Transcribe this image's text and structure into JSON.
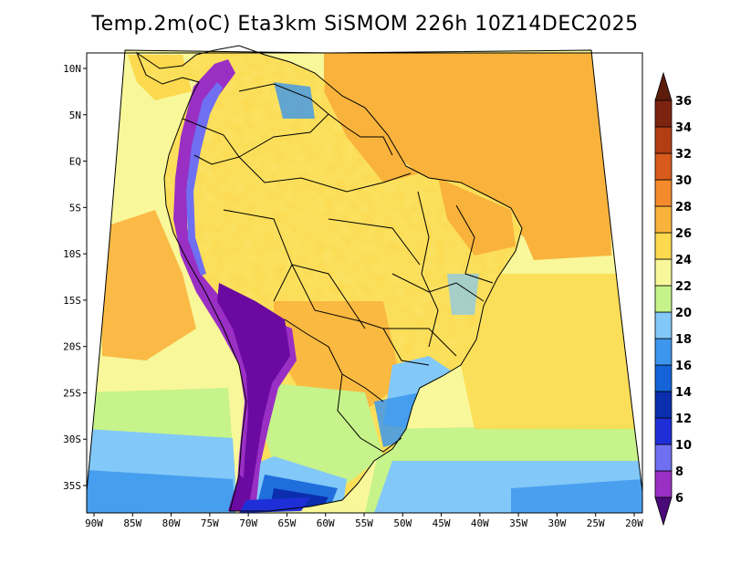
{
  "title": "Temp.2m(oC) Eta3km SiSMOM 226h 10Z14DEC2025",
  "map": {
    "variable": "2 m temperature",
    "units": "oC",
    "region": "South America",
    "lon_range": [
      -91,
      -19
    ],
    "lat_range": [
      -38,
      11
    ],
    "lon_ticks": [
      "90W",
      "85W",
      "80W",
      "75W",
      "70W",
      "65W",
      "60W",
      "55W",
      "50W",
      "45W",
      "40W",
      "35W",
      "30W",
      "25W",
      "20W"
    ],
    "lat_ticks": [
      "10N",
      "5N",
      "EQ",
      "5S",
      "10S",
      "15S",
      "20S",
      "25S",
      "30S",
      "35S"
    ]
  },
  "colorbar": {
    "labels": [
      "6",
      "8",
      "10",
      "12",
      "14",
      "16",
      "18",
      "20",
      "22",
      "24",
      "26",
      "28",
      "30",
      "32",
      "34",
      "36"
    ],
    "colors": [
      "#6a0aa0",
      "#9a2fc4",
      "#6f6ff2",
      "#1f2fd8",
      "#0a2eae",
      "#1464d8",
      "#3c96ec",
      "#82c8f8",
      "#c6f38a",
      "#f8f79a",
      "#fcd94e",
      "#f9b33c",
      "#f48a2c",
      "#d85a1c",
      "#b43e14",
      "#7c2410"
    ],
    "min_arrow_color": "#4b0a7a",
    "max_arrow_color": "#5c1c0c"
  },
  "chart_data": {
    "type": "heatmap",
    "title": "Temp.2m(oC) Eta3km SiSMOM 226h 10Z14DEC2025",
    "x_ticks": [
      "90W",
      "85W",
      "80W",
      "75W",
      "70W",
      "65W",
      "60W",
      "55W",
      "50W",
      "45W",
      "40W",
      "35W",
      "30W",
      "25W",
      "20W"
    ],
    "y_ticks": [
      "10N",
      "5N",
      "EQ",
      "5S",
      "10S",
      "15S",
      "20S",
      "25S",
      "30S",
      "35S"
    ],
    "colorbar_range": [
      6,
      36
    ],
    "colorbar_step": 2
  }
}
